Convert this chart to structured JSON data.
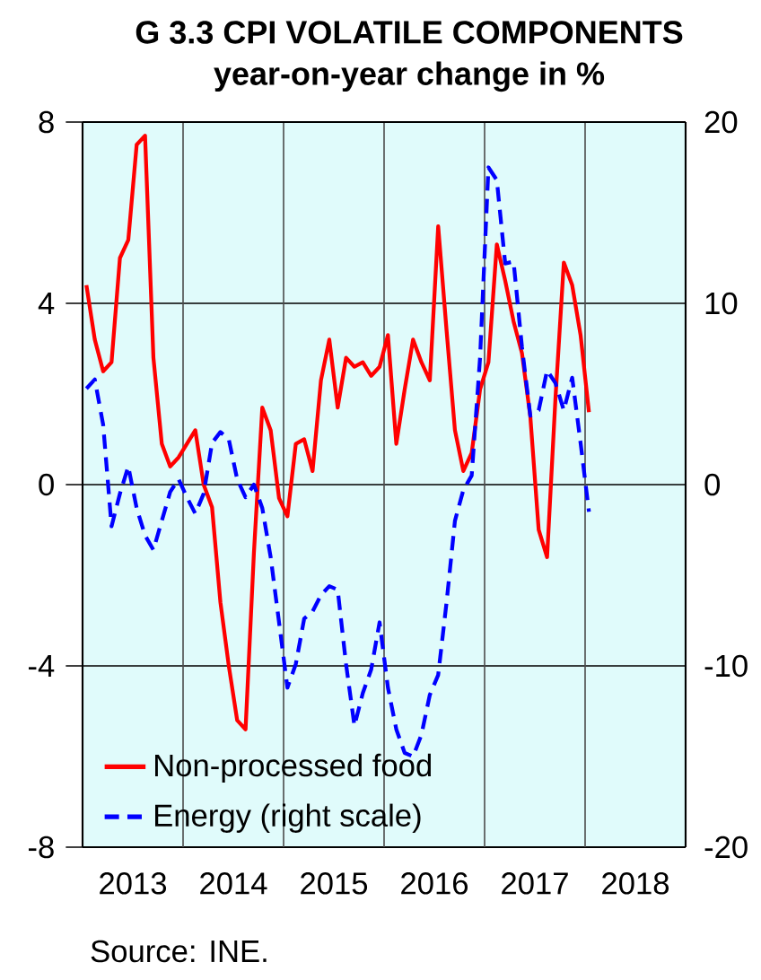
{
  "chart_data": {
    "type": "line",
    "title": "G 3.3 CPI VOLATILE COMPONENTS",
    "subtitle": "year-on-year change in %",
    "x": [
      "2013-01-15",
      "2013-02-15",
      "2013-03-15",
      "2013-04-15",
      "2013-05-15",
      "2013-06-15",
      "2013-07-15",
      "2013-08-15",
      "2013-09-15",
      "2013-10-15",
      "2013-11-15",
      "2013-12-15",
      "2014-01-15",
      "2014-02-15",
      "2014-03-15",
      "2014-04-15",
      "2014-05-15",
      "2014-06-15",
      "2014-07-15",
      "2014-08-15",
      "2014-09-15",
      "2014-10-15",
      "2014-11-15",
      "2014-12-15",
      "2015-01-15",
      "2015-02-15",
      "2015-03-15",
      "2015-04-15",
      "2015-05-15",
      "2015-06-15",
      "2015-07-15",
      "2015-08-15",
      "2015-09-15",
      "2015-10-15",
      "2015-11-15",
      "2015-12-15",
      "2016-01-15",
      "2016-02-15",
      "2016-03-15",
      "2016-04-15",
      "2016-05-15",
      "2016-06-15",
      "2016-07-15",
      "2016-08-15",
      "2016-09-15",
      "2016-10-15",
      "2016-11-15",
      "2016-12-15",
      "2017-01-15",
      "2017-02-15",
      "2017-03-15",
      "2017-04-15",
      "2017-05-15",
      "2017-06-15",
      "2017-07-15",
      "2017-08-15",
      "2017-09-15",
      "2017-10-15",
      "2017-11-15",
      "2017-12-15",
      "2018-01-15"
    ],
    "xlim": [
      "2013-01-01",
      "2019-01-01"
    ],
    "xticks": [
      {
        "value": "2013-07-01",
        "label": "2013"
      },
      {
        "value": "2014-07-01",
        "label": "2014"
      },
      {
        "value": "2015-07-01",
        "label": "2015"
      },
      {
        "value": "2016-07-01",
        "label": "2016"
      },
      {
        "value": "2017-07-01",
        "label": "2017"
      },
      {
        "value": "2018-07-01",
        "label": "2018"
      },
      {
        "value": "2014-01-01",
        "label": null
      },
      {
        "value": "2015-01-01",
        "label": null
      },
      {
        "value": "2016-01-01",
        "label": null
      },
      {
        "value": "2017-01-01",
        "label": null
      },
      {
        "value": "2018-01-01",
        "label": null
      }
    ],
    "ylim": [
      -8,
      8
    ],
    "yticks": [
      -8,
      -4,
      0,
      4,
      8
    ],
    "y2lim": [
      -20,
      20
    ],
    "y2ticks": [
      -20,
      -10,
      0,
      10,
      20
    ],
    "grid": true,
    "legend": "bottom left",
    "series": [
      {
        "name": "Non-processed food",
        "color": "#ff0000",
        "line_style": "solid",
        "values": [
          4.4,
          3.2,
          2.5,
          2.7,
          5.0,
          5.4,
          7.5,
          7.7,
          2.8,
          0.9,
          0.4,
          0.6,
          0.9,
          1.2,
          0.0,
          -0.5,
          -2.6,
          -4.0,
          -5.2,
          -5.4,
          -1.5,
          1.7,
          1.2,
          -0.3,
          -0.7,
          0.9,
          1.0,
          0.3,
          2.3,
          3.2,
          1.7,
          2.8,
          2.6,
          2.7,
          2.4,
          2.6,
          3.3,
          0.9,
          2.1,
          3.2,
          2.7,
          2.3,
          5.7,
          3.4,
          1.2,
          0.3,
          0.7,
          2.1,
          2.7,
          5.3,
          4.5,
          3.6,
          2.9,
          1.5,
          -1.0,
          -1.6,
          1.9,
          4.9,
          4.4,
          3.3,
          1.6
        ]
      },
      {
        "name": "Energy (right scale)",
        "color": "#0000ff",
        "line_style": "dashed",
        "axis": "y2",
        "values": [
          5.3,
          5.8,
          3.3,
          -2.3,
          -0.5,
          1.0,
          -1.3,
          -2.8,
          -3.6,
          -2.0,
          -0.4,
          0.3,
          -0.7,
          -1.6,
          -0.5,
          2.3,
          2.9,
          2.5,
          0.3,
          -0.7,
          0.0,
          -1.3,
          -4.0,
          -7.6,
          -11.2,
          -9.9,
          -7.4,
          -7.0,
          -6.1,
          -5.6,
          -5.8,
          -9.9,
          -13.3,
          -11.5,
          -10.2,
          -7.6,
          -11.2,
          -13.5,
          -14.8,
          -15.0,
          -13.8,
          -11.6,
          -10.5,
          -6.5,
          -2.0,
          -0.3,
          0.5,
          7.0,
          17.5,
          16.8,
          12.2,
          12.3,
          7.6,
          3.8,
          4.1,
          6.3,
          5.6,
          4.1,
          5.9,
          2.3,
          -1.5
        ]
      }
    ],
    "annotations": [
      "Source: INE."
    ]
  }
}
